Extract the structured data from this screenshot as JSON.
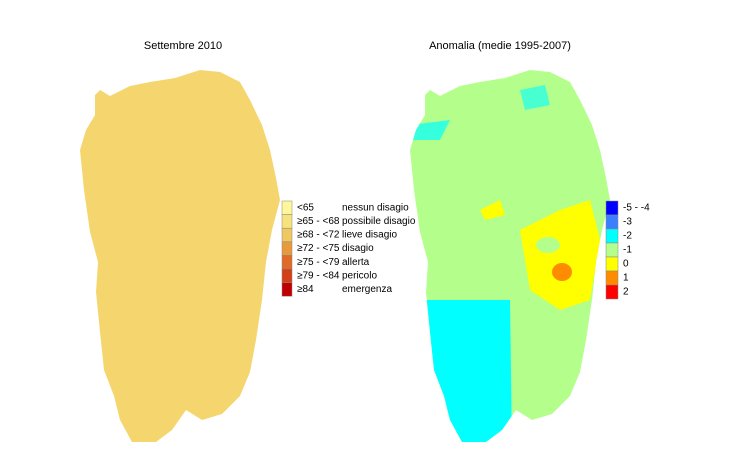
{
  "maps": [
    {
      "title": "Settembre 2010",
      "legend": [
        {
          "range": "<65",
          "label": "nessun disagio",
          "color": "#fff799"
        },
        {
          "range": "≥65 - <68",
          "label": "possibile disagio",
          "color": "#f7e37c"
        },
        {
          "range": "≥68 - <72",
          "label": "lieve disagio",
          "color": "#f0c860"
        },
        {
          "range": "≥72 - <75",
          "label": "disagio",
          "color": "#e8993c"
        },
        {
          "range": "≥75 - <79",
          "label": "allerta",
          "color": "#e06a28"
        },
        {
          "range": "≥79 - <84",
          "label": "pericolo",
          "color": "#d43f18"
        },
        {
          "range": "≥84",
          "label": "emergenza",
          "color": "#c00000"
        }
      ]
    },
    {
      "title": "Anomalia (medie 1995-2007)",
      "legend": [
        {
          "range": "-5 - -4",
          "color": "#0000ff"
        },
        {
          "range": "-3",
          "color": "#3a7fff"
        },
        {
          "range": "-2",
          "color": "#00ffff"
        },
        {
          "range": "-1",
          "color": "#b4ff8c"
        },
        {
          "range": "0",
          "color": "#ffff00"
        },
        {
          "range": "1",
          "color": "#ff8c00"
        },
        {
          "range": "2",
          "color": "#ff0000"
        }
      ]
    }
  ]
}
